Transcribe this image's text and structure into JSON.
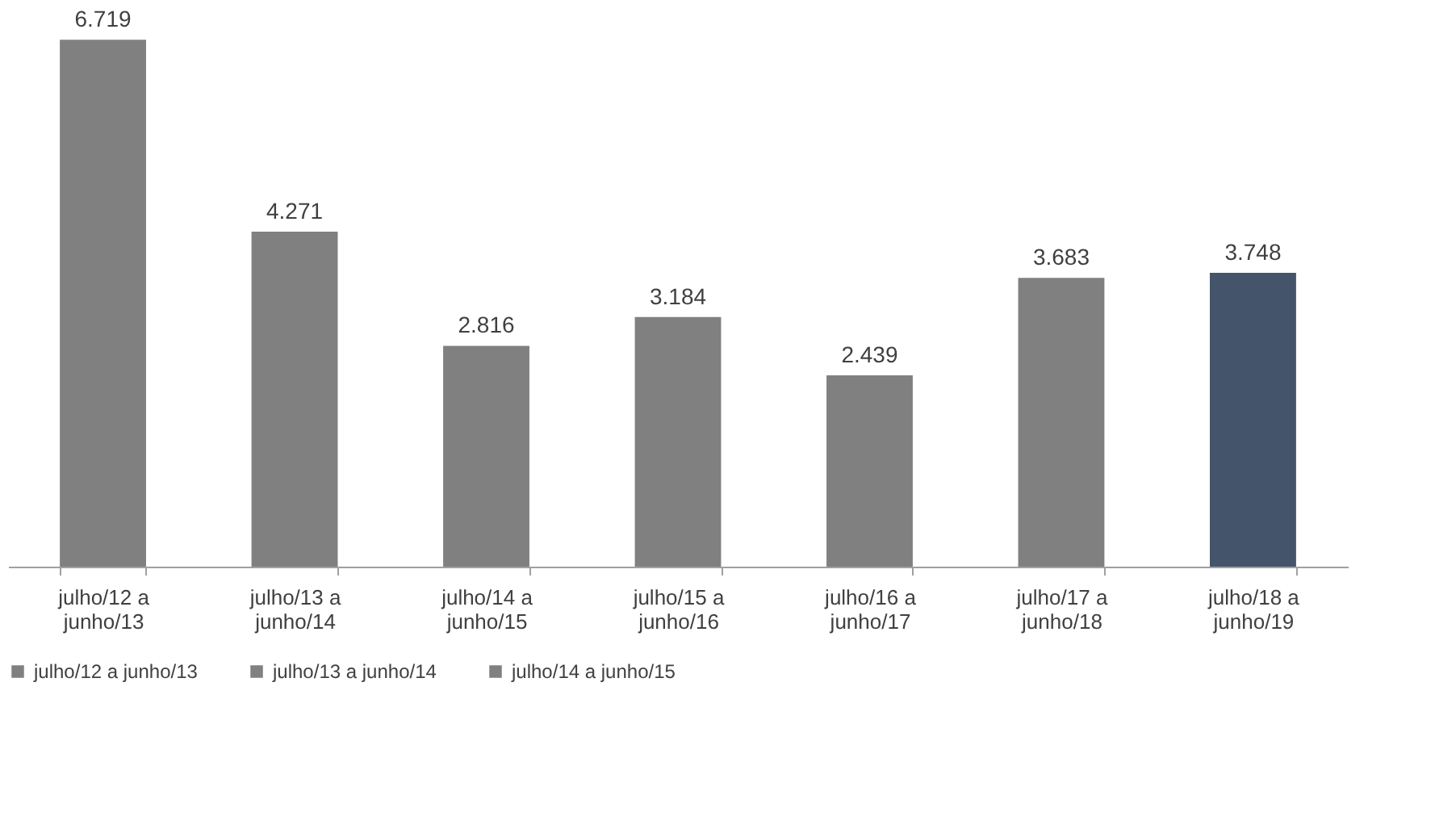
{
  "chart_data": {
    "type": "bar",
    "categories": [
      "julho/12 a junho/13",
      "julho/13 a junho/14",
      "julho/14 a junho/15",
      "julho/15 a junho/16",
      "julho/16 a junho/17",
      "julho/17 a junho/18",
      "julho/18 a junho/19"
    ],
    "series": [
      {
        "name": "julho/12 a junho/13",
        "color": "#808080",
        "values": [
          6719,
          null,
          null,
          null,
          null,
          null,
          null
        ],
        "value_labels": [
          "6.719",
          null,
          null,
          null,
          null,
          null,
          null
        ]
      },
      {
        "name": "julho/13 a junho/14",
        "color": "#808080",
        "values": [
          null,
          4271,
          null,
          null,
          null,
          null,
          null
        ],
        "value_labels": [
          null,
          "4.271",
          null,
          null,
          null,
          null,
          null
        ]
      },
      {
        "name": "julho/14 a junho/15",
        "color": "#808080",
        "values": [
          null,
          null,
          2816,
          null,
          null,
          null,
          null
        ],
        "value_labels": [
          null,
          null,
          "2.816",
          null,
          null,
          null,
          null
        ]
      },
      {
        "color": "#808080",
        "values": [
          null,
          null,
          null,
          3184,
          null,
          null,
          null
        ],
        "value_labels": [
          null,
          null,
          null,
          "3.184",
          null,
          null,
          null
        ]
      },
      {
        "color": "#808080",
        "values": [
          null,
          null,
          null,
          null,
          2439,
          null,
          null
        ],
        "value_labels": [
          null,
          null,
          null,
          null,
          "2.439",
          null,
          null
        ]
      },
      {
        "color": "#808080",
        "values": [
          null,
          null,
          null,
          null,
          null,
          3683,
          null
        ],
        "value_labels": [
          null,
          null,
          null,
          null,
          null,
          "3.683",
          null
        ]
      },
      {
        "color": "#44546a",
        "values": [
          null,
          null,
          null,
          null,
          null,
          null,
          3748
        ],
        "value_labels": [
          null,
          null,
          null,
          null,
          null,
          null,
          "3.748"
        ]
      }
    ],
    "legend": "bottom",
    "grid": false,
    "tick_labels": "x"
  }
}
